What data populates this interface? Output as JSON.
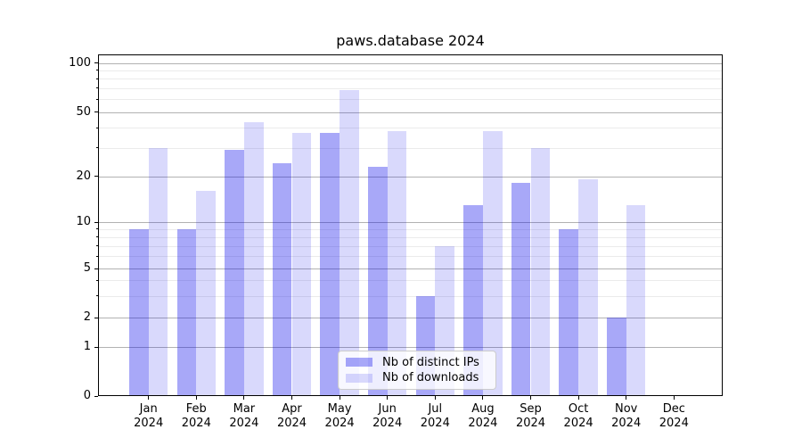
{
  "title": "paws.database 2024",
  "chart_data": {
    "type": "bar",
    "title": "paws.database 2024",
    "categories": [
      "Jan",
      "Feb",
      "Mar",
      "Apr",
      "May",
      "Jun",
      "Jul",
      "Aug",
      "Sep",
      "Oct",
      "Nov",
      "Dec"
    ],
    "year_label": "2024",
    "series": [
      {
        "name": "Nb of distinct IPs",
        "color": "rgba(0,0,235,0.34)",
        "values": [
          9,
          9,
          29,
          24,
          37,
          23,
          3,
          13,
          18,
          9,
          2,
          0
        ]
      },
      {
        "name": "Nb of downloads",
        "color": "rgba(0,0,235,0.15)",
        "values": [
          30,
          16,
          43,
          37,
          68,
          38,
          7,
          38,
          30,
          19,
          13,
          0
        ]
      }
    ],
    "yaxis": {
      "scale": "quasi-log",
      "ticks": [
        0,
        1,
        2,
        5,
        10,
        20,
        50,
        100
      ],
      "minor_ticks": [
        3,
        4,
        6,
        7,
        8,
        9,
        30,
        40,
        60,
        70,
        80,
        90
      ],
      "ylim": [
        0,
        110
      ]
    },
    "grid": true,
    "legend_position": "lower center"
  },
  "colors": {
    "major_grid": "#b2b2b2",
    "minor_grid": "#ebebeb",
    "spine": "#000000",
    "text": "#000000"
  }
}
